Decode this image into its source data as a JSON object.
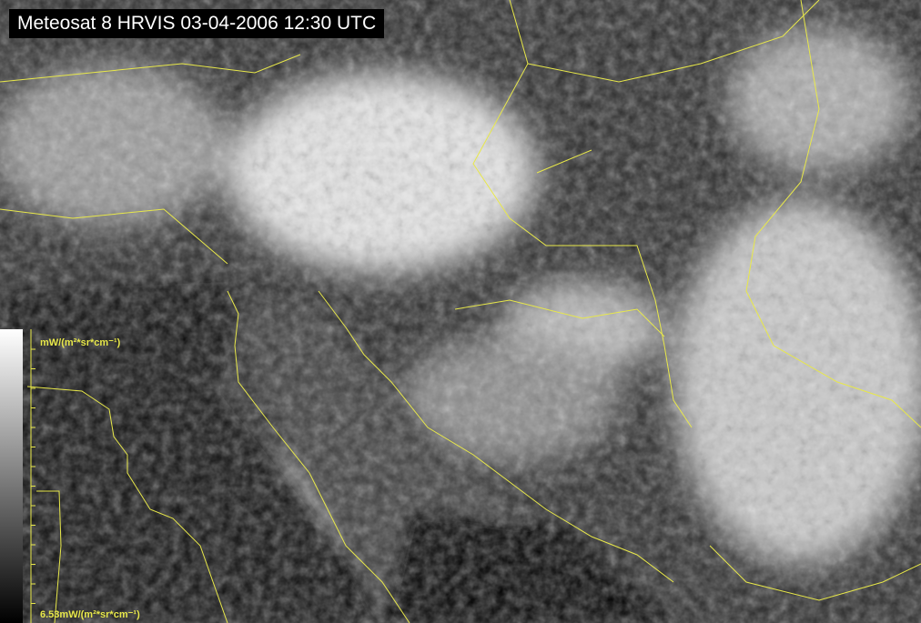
{
  "title": "Meteosat 8 HRVIS 03-04-2006 12:30 UTC",
  "colorbar": {
    "top_label": "mW/(m²*sr*cm⁻¹)",
    "bottom_label": "6.53mW/(m²*sr*cm⁻¹)",
    "gradient": [
      "#ffffff",
      "#000000"
    ]
  },
  "overlay_color": "#e8e84a"
}
